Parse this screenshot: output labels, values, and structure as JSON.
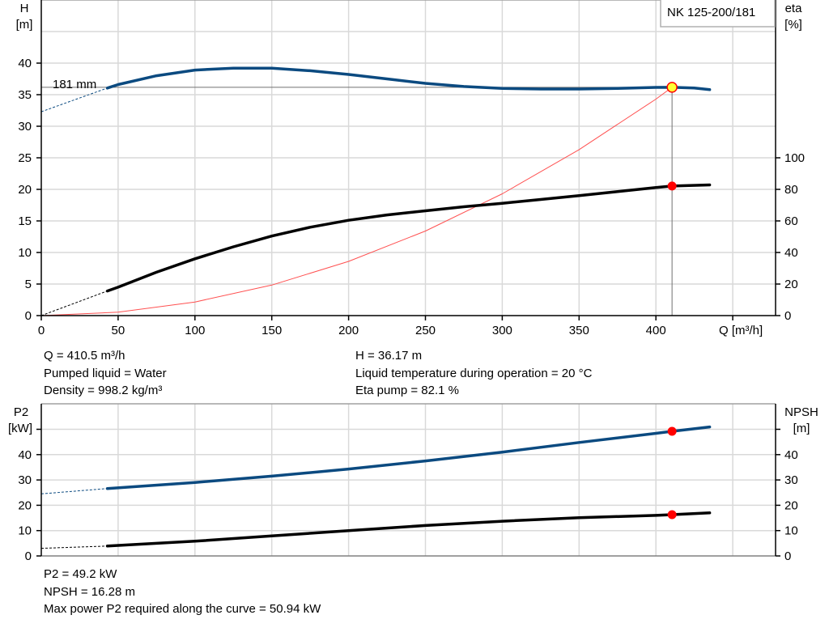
{
  "legend_label": "NK 125-200/181",
  "info_top": {
    "col1": [
      "Q = 410.5 m³/h",
      "Pumped liquid = Water",
      "Density = 998.2 kg/m³"
    ],
    "col2": [
      "H = 36.17 m",
      "Liquid temperature during operation = 20 °C",
      "Eta pump = 82.1 %"
    ]
  },
  "info_bottom": [
    "P2 = 49.2 kW",
    "NPSH = 16.28 m",
    "Max power P2 required along the curve = 50.94 kW"
  ],
  "colors": {
    "head": "#0b4a80",
    "eta": "#000000",
    "system": "#ff5050",
    "point": "#ff0000",
    "duty_fill": "#ffff33",
    "grid": "#d9d9d9"
  },
  "chart_data": [
    {
      "type": "line",
      "xlabel": "Q [m³/h]",
      "ylabel_left": [
        "H",
        "[m]"
      ],
      "ylabel_right": [
        "eta",
        "[%]"
      ],
      "xlim": [
        0,
        478
      ],
      "ylim_left": [
        0,
        50
      ],
      "ylim_right": [
        0,
        200
      ],
      "xticks": [
        0,
        50,
        100,
        150,
        200,
        250,
        300,
        350,
        400
      ],
      "yticks_left": [
        0,
        5,
        10,
        15,
        20,
        25,
        30,
        35,
        40
      ],
      "yticks_right": [
        0,
        20,
        40,
        60,
        80,
        100
      ],
      "grid": true,
      "legend": "top-right",
      "annotation": "181 mm",
      "series": [
        {
          "name": "H",
          "axis": "left",
          "extrapolated": {
            "x": [
              0,
              43
            ],
            "y": [
              32.3,
              36.05
            ]
          },
          "x": [
            43,
            50,
            75,
            100,
            125,
            150,
            175,
            200,
            225,
            250,
            275,
            300,
            325,
            350,
            375,
            400,
            410.5,
            425,
            435
          ],
          "y": [
            36.05,
            36.6,
            38.0,
            38.9,
            39.2,
            39.2,
            38.8,
            38.2,
            37.5,
            36.8,
            36.3,
            36.0,
            35.9,
            35.9,
            36.0,
            36.15,
            36.17,
            36.05,
            35.8
          ]
        },
        {
          "name": "eta",
          "axis": "right",
          "extrapolated": {
            "x": [
              0,
              43
            ],
            "y": [
              0,
              15.6
            ]
          },
          "x": [
            43,
            50,
            75,
            100,
            125,
            150,
            175,
            200,
            225,
            250,
            275,
            300,
            325,
            350,
            375,
            400,
            410.5,
            435
          ],
          "y": [
            15.6,
            18,
            27.5,
            36,
            43.6,
            50.4,
            56,
            60.4,
            63.8,
            66.4,
            69,
            71.2,
            73.6,
            76,
            78.6,
            81.2,
            82.1,
            82.8
          ]
        },
        {
          "name": "system",
          "axis": "left",
          "x": [
            0,
            50,
            100,
            150,
            200,
            250,
            300,
            350,
            400,
            410.5
          ],
          "y": [
            0,
            0.54,
            2.15,
            4.83,
            8.59,
            13.4,
            19.3,
            26.3,
            34.3,
            36.17
          ]
        }
      ],
      "duty_point": {
        "Q": 410.5,
        "H": 36.17,
        "eta": 82.1
      }
    },
    {
      "type": "line",
      "ylabel_left": [
        "P2",
        "[kW]"
      ],
      "ylabel_right": [
        "NPSH",
        "[m]"
      ],
      "xlim": [
        0,
        478
      ],
      "ylim_left": [
        0,
        55
      ],
      "ylim_right": [
        0,
        55
      ],
      "xticks": [
        0,
        50,
        100,
        150,
        200,
        250,
        300,
        350,
        400,
        450
      ],
      "yticks_left": [
        0,
        10,
        20,
        30,
        40
      ],
      "yticks_right": [
        0,
        10,
        20,
        30,
        40
      ],
      "grid": true,
      "series": [
        {
          "name": "P2",
          "axis": "left",
          "extrapolated": {
            "x": [
              0,
              43
            ],
            "y": [
              24.5,
              26.6
            ]
          },
          "x": [
            43,
            100,
            150,
            200,
            250,
            300,
            350,
            400,
            410.5,
            435
          ],
          "y": [
            26.6,
            29,
            31.5,
            34.3,
            37.5,
            41,
            44.8,
            48.4,
            49.2,
            50.94
          ]
        },
        {
          "name": "NPSH",
          "axis": "right",
          "extrapolated": {
            "x": [
              0,
              43
            ],
            "y": [
              3,
              3.9
            ]
          },
          "x": [
            43,
            100,
            150,
            200,
            250,
            300,
            350,
            400,
            410.5,
            435
          ],
          "y": [
            3.9,
            5.8,
            7.9,
            10,
            12,
            13.7,
            15.1,
            16.0,
            16.28,
            17
          ]
        }
      ],
      "duty_point": {
        "Q": 410.5,
        "P2": 49.2,
        "NPSH": 16.28
      }
    }
  ]
}
